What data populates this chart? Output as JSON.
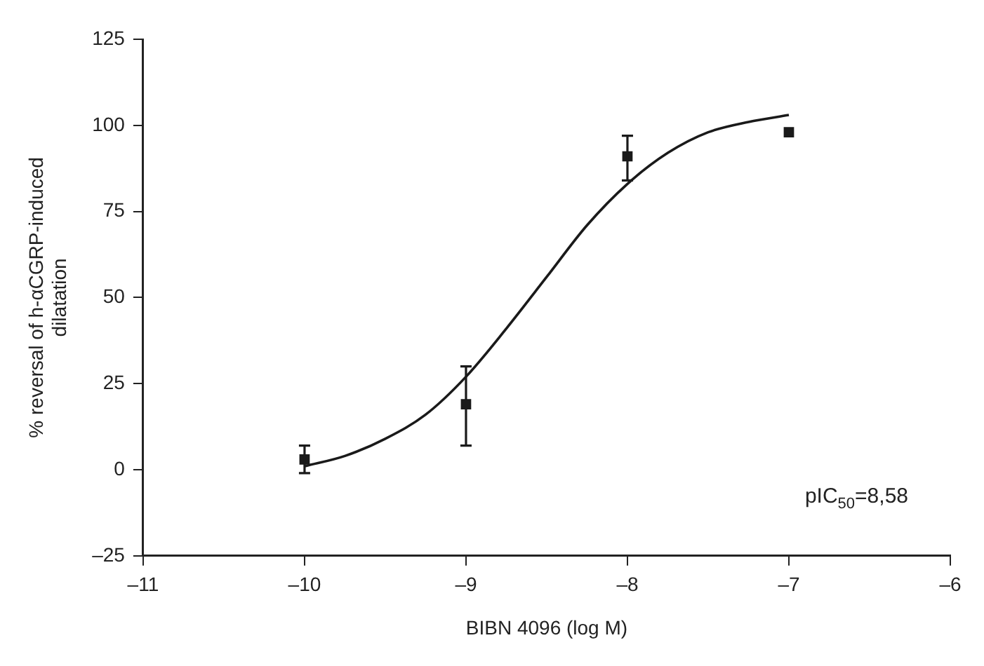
{
  "chart_data": {
    "type": "scatter",
    "xlabel": "BIBN 4096 (log M)",
    "ylabel": "% reversal of h-αCGRP-induced dilatation",
    "series": [
      {
        "type": "scatter",
        "color": "#1a1a1a",
        "x": [
          -10,
          -9,
          -8,
          -7
        ],
        "values": [
          3,
          19,
          91,
          98
        ],
        "errors": [
          [
            -1,
            7
          ],
          [
            7,
            30
          ],
          [
            84,
            97
          ],
          null
        ],
        "marker": "square"
      },
      {
        "type": "line",
        "color": "#1a1a1a",
        "x": [
          -10,
          -9.75,
          -9.5,
          -9.25,
          -9,
          -8.75,
          -8.5,
          -8.25,
          -8,
          -7.75,
          -7.5,
          -7.25,
          -7
        ],
        "values": [
          1,
          4,
          9,
          16,
          27,
          41,
          56,
          71,
          83,
          92,
          98,
          101,
          103
        ],
        "marker": "none",
        "line_style": "solid"
      }
    ],
    "xlim": [
      -11,
      -6
    ],
    "xticks": [
      {
        "value": -11,
        "label": "–11"
      },
      {
        "value": -10,
        "label": "–10"
      },
      {
        "value": -9,
        "label": "–9"
      },
      {
        "value": -8,
        "label": "–8"
      },
      {
        "value": -7,
        "label": "–7"
      },
      {
        "value": -6,
        "label": "–6"
      }
    ],
    "ylim": [
      -25,
      125
    ],
    "yticks": [
      {
        "value": -25,
        "label": "–25"
      },
      0,
      25,
      50,
      75,
      100,
      125
    ],
    "grid": false,
    "legend": false,
    "annotations": [
      "pIC$_{50}$=8,58"
    ]
  }
}
